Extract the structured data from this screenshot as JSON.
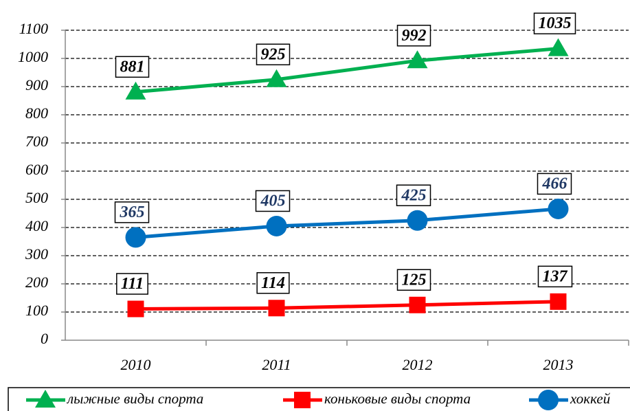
{
  "chart_data": {
    "type": "line",
    "categories": [
      "2010",
      "2011",
      "2012",
      "2013"
    ],
    "series": [
      {
        "name": "лыжные виды спорта",
        "color": "#00b050",
        "marker": "triangle",
        "label_color": "#000000",
        "values": [
          881,
          925,
          992,
          1035
        ]
      },
      {
        "name": "коньковые виды спорта",
        "color": "#ff0000",
        "marker": "square",
        "label_color": "#000000",
        "values": [
          111,
          114,
          125,
          137
        ]
      },
      {
        "name": "хоккей",
        "color": "#0070c0",
        "marker": "circle",
        "label_color": "#1f3864",
        "values": [
          365,
          405,
          425,
          466
        ]
      }
    ],
    "ylim": [
      0,
      1100
    ],
    "yticks": [
      0,
      100,
      200,
      300,
      400,
      500,
      600,
      700,
      800,
      900,
      1000,
      1100
    ],
    "grid": true,
    "legend": "bottom"
  }
}
